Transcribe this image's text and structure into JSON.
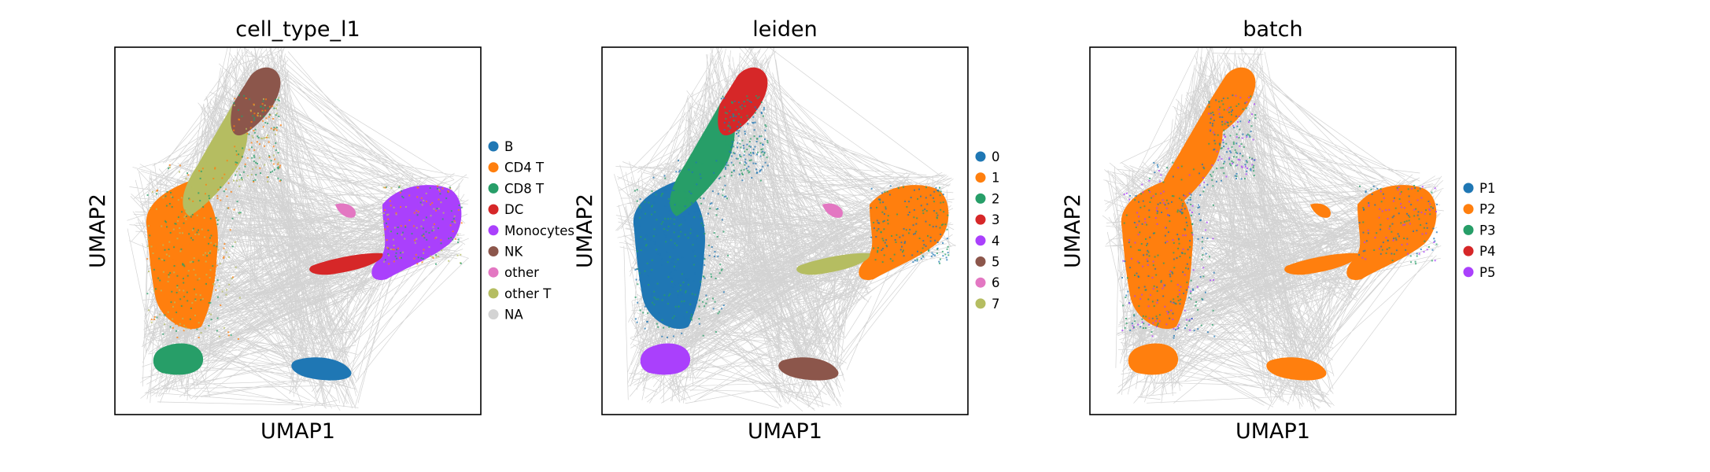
{
  "chart_data": [
    {
      "type": "scatter",
      "title": "cell_type_l1",
      "xlabel": "UMAP1",
      "ylabel": "UMAP2",
      "grid": false,
      "ticks": false,
      "legend_placement": "right",
      "series": [
        {
          "name": "B",
          "color": "#1f77b4"
        },
        {
          "name": "CD4 T",
          "color": "#ff7f0e"
        },
        {
          "name": "CD8 T",
          "color": "#279e68"
        },
        {
          "name": "DC",
          "color": "#d62728"
        },
        {
          "name": "Monocytes",
          "color": "#aa40fc"
        },
        {
          "name": "NK",
          "color": "#8c564b"
        },
        {
          "name": "other",
          "color": "#e377c2"
        },
        {
          "name": "other T",
          "color": "#b5bd61"
        },
        {
          "name": "NA",
          "color": "#d3d3d3"
        }
      ]
    },
    {
      "type": "scatter",
      "title": "leiden",
      "xlabel": "UMAP1",
      "ylabel": "UMAP2",
      "grid": false,
      "ticks": false,
      "legend_placement": "right",
      "series": [
        {
          "name": "0",
          "color": "#1f77b4"
        },
        {
          "name": "1",
          "color": "#ff7f0e"
        },
        {
          "name": "2",
          "color": "#279e68"
        },
        {
          "name": "3",
          "color": "#d62728"
        },
        {
          "name": "4",
          "color": "#aa40fc"
        },
        {
          "name": "5",
          "color": "#8c564b"
        },
        {
          "name": "6",
          "color": "#e377c2"
        },
        {
          "name": "7",
          "color": "#b5bd61"
        }
      ]
    },
    {
      "type": "scatter",
      "title": "batch",
      "xlabel": "UMAP1",
      "ylabel": "UMAP2",
      "grid": false,
      "ticks": false,
      "legend_placement": "right",
      "series": [
        {
          "name": "P1",
          "color": "#1f77b4"
        },
        {
          "name": "P2",
          "color": "#ff7f0e"
        },
        {
          "name": "P3",
          "color": "#279e68"
        },
        {
          "name": "P4",
          "color": "#d62728"
        },
        {
          "name": "P5",
          "color": "#aa40fc"
        }
      ]
    }
  ]
}
